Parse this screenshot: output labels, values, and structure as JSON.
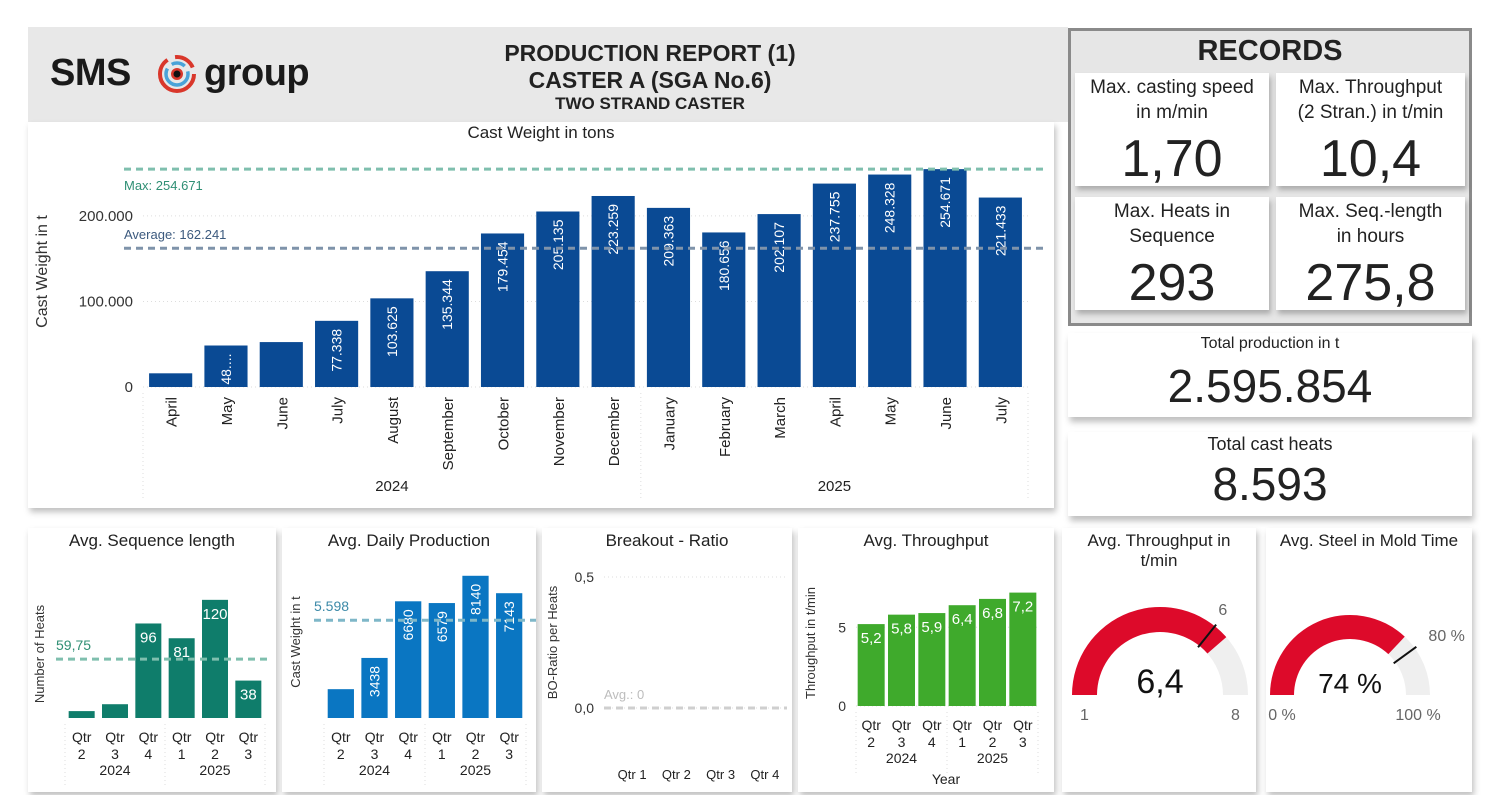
{
  "header": {
    "logo_left": "SMS",
    "logo_right": "group",
    "title_line1": "PRODUCTION REPORT (1)",
    "title_line2": "CASTER A (SGA No.6)",
    "title_line3": "TWO STRAND CASTER"
  },
  "colors": {
    "main_bar": "#0a4a94",
    "seq_bar": "#0f7d6b",
    "daily_bar": "#0a76c2",
    "throughput_bar": "#3faa2c",
    "gauge_fill": "#dd0a2a",
    "gauge_track": "#efefef",
    "max_line": "#7fbfae",
    "avg_line": "#7f93aa"
  },
  "records": {
    "title": "RECORDS",
    "cards": [
      {
        "label1": "Max. casting speed",
        "label2": "in m/min",
        "value": "1,70"
      },
      {
        "label1": "Max. Throughput",
        "label2": "(2 Stran.) in t/min",
        "value": "10,4"
      },
      {
        "label1": "Max. Heats in",
        "label2": "Sequence",
        "value": "293"
      },
      {
        "label1": "Max. Seq.-length",
        "label2": "in hours",
        "value": "275,8"
      }
    ]
  },
  "kpis": {
    "total_production": {
      "label": "Total production in t",
      "value": "2.595.854"
    },
    "total_heats": {
      "label": "Total cast heats",
      "value": "8.593"
    }
  },
  "chart_data": [
    {
      "id": "cast_weight",
      "type": "bar",
      "title": "Cast Weight in tons",
      "ylabel": "Cast Weight in t",
      "xlabel": "",
      "ylim": [
        0,
        270000
      ],
      "yticks": [
        {
          "v": 0,
          "label": "0"
        },
        {
          "v": 100000,
          "label": "100.000"
        },
        {
          "v": 200000,
          "label": "200.000"
        }
      ],
      "categories": [
        "April",
        "May",
        "June",
        "July",
        "August",
        "September",
        "October",
        "November",
        "December",
        "January",
        "February",
        "March",
        "April",
        "May",
        "June",
        "July"
      ],
      "groups": [
        {
          "label": "2024",
          "count": 9
        },
        {
          "label": "2025",
          "count": 7
        }
      ],
      "values": [
        16000,
        48500,
        52500,
        77338,
        103625,
        135344,
        179454,
        205135,
        223259,
        209363,
        180656,
        202107,
        237755,
        248328,
        254671,
        221433
      ],
      "data_labels": [
        "",
        "48....",
        "",
        "77.338",
        "103.625",
        "135.344",
        "179.454",
        "205.135",
        "223.259",
        "209.363",
        "180.656",
        "202.107",
        "237.755",
        "248.328",
        "254.671",
        "221.433"
      ],
      "reference_lines": [
        {
          "name": "max",
          "value": 254671,
          "label": "Max: 254.671"
        },
        {
          "name": "average",
          "value": 162241,
          "label": "Average: 162.241"
        }
      ]
    },
    {
      "id": "avg_sequence",
      "type": "bar",
      "title": "Avg. Sequence length",
      "ylabel": "Number of Heats",
      "ylim": [
        0,
        130
      ],
      "categories": [
        "Qtr 2",
        "Qtr 3",
        "Qtr 4",
        "Qtr 1",
        "Qtr 2",
        "Qtr 3"
      ],
      "groups": [
        {
          "label": "2024",
          "count": 3
        },
        {
          "label": "2025",
          "count": 3
        }
      ],
      "values": [
        7,
        14,
        96,
        81,
        120,
        38
      ],
      "data_labels": [
        "",
        "",
        "96",
        "81",
        "120",
        "38"
      ],
      "reference_lines": [
        {
          "name": "average",
          "value": 59.75,
          "label": "59,75"
        }
      ]
    },
    {
      "id": "avg_daily",
      "type": "bar",
      "title": "Avg. Daily Production",
      "ylabel": "Cast Weight in t",
      "ylim": [
        0,
        8700
      ],
      "categories": [
        "Qtr 2",
        "Qtr 3",
        "Qtr 4",
        "Qtr 1",
        "Qtr 2",
        "Qtr 3"
      ],
      "groups": [
        {
          "label": "2024",
          "count": 3
        },
        {
          "label": "2025",
          "count": 3
        }
      ],
      "values": [
        1650,
        3438,
        6680,
        6579,
        8140,
        7143
      ],
      "data_labels": [
        "",
        "3438",
        "6680",
        "6579",
        "8140",
        "7143"
      ],
      "reference_lines": [
        {
          "name": "average",
          "value": 5598,
          "label": "5.598"
        }
      ]
    },
    {
      "id": "breakout",
      "type": "bar",
      "title": "Breakout - Ratio",
      "ylabel": "BO-Ratio per Heats",
      "ylim": [
        0,
        0.5
      ],
      "yticks": [
        {
          "v": 0,
          "label": "0,0"
        },
        {
          "v": 0.5,
          "label": "0,5"
        }
      ],
      "categories": [
        "Qtr 1",
        "Qtr 2",
        "Qtr 3",
        "Qtr 4"
      ],
      "values": [
        0,
        0,
        0,
        0
      ],
      "reference_lines": [
        {
          "name": "average",
          "value": 0,
          "label": "Avg.: 0"
        }
      ]
    },
    {
      "id": "avg_throughput",
      "type": "bar",
      "title": "Avg. Throughput",
      "ylabel": "Throughput in t/min",
      "xlabel": "Year",
      "ylim": [
        0,
        8
      ],
      "yticks": [
        {
          "v": 0,
          "label": "0"
        },
        {
          "v": 5,
          "label": "5"
        }
      ],
      "categories": [
        "Qtr 2",
        "Qtr 3",
        "Qtr 4",
        "Qtr 1",
        "Qtr 2",
        "Qtr 3"
      ],
      "groups": [
        {
          "label": "2024",
          "count": 3
        },
        {
          "label": "2025",
          "count": 3
        }
      ],
      "values": [
        5.2,
        5.8,
        5.9,
        6.4,
        6.8,
        7.2
      ],
      "data_labels": [
        "5,2",
        "5,8",
        "5,9",
        "6,4",
        "6,8",
        "7,2"
      ]
    },
    {
      "id": "gauge_throughput",
      "type": "gauge",
      "title_line1": "Avg. Throughput in",
      "title_line2": "t/min",
      "min": 1,
      "max": 8,
      "value": 6.4,
      "target": 6,
      "value_label": "6,4",
      "min_label": "1",
      "max_label": "8",
      "target_label": "6"
    },
    {
      "id": "gauge_mold",
      "type": "gauge",
      "title_line1": "Avg. Steel in Mold Time",
      "title_line2": "",
      "min": 0,
      "max": 100,
      "value": 74,
      "target": 80,
      "value_label": "74 %",
      "min_label": "0 %",
      "max_label": "100 %",
      "target_label": "80 %"
    }
  ]
}
